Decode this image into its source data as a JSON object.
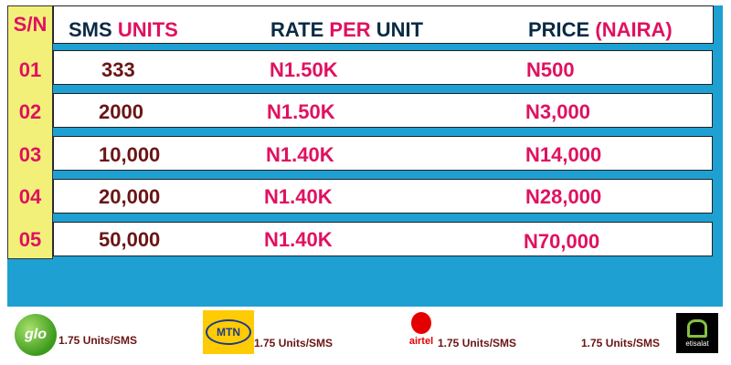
{
  "header": {
    "sn": "S/N",
    "units_a": "SMS",
    "units_b": "UNITS",
    "rate_a": "RATE",
    "rate_b": "PER",
    "rate_c": "UNIT",
    "price_a": "PRICE",
    "price_b": "(NAIRA)"
  },
  "rows": [
    {
      "sn": "01",
      "units": "333",
      "rate": "N1.50K",
      "price": "N500"
    },
    {
      "sn": "02",
      "units": "2000",
      "rate": "N1.50K",
      "price": "N3,000"
    },
    {
      "sn": "03",
      "units": "10,000",
      "rate": "N1.40K",
      "price": "N14,000"
    },
    {
      "sn": "04",
      "units": "20,000",
      "rate": "N1.40K",
      "price": "N28,000"
    },
    {
      "sn": "05",
      "units": "50,000",
      "rate": "N1.40K",
      "price": "N70,000"
    }
  ],
  "footer": {
    "glo": {
      "logo": "glo",
      "text": "1.75 Units/SMS"
    },
    "mtn": {
      "logo": "MTN",
      "text": "1.75 Units/SMS"
    },
    "airtel": {
      "logo": "airtel",
      "text": "1.75 Units/SMS"
    },
    "etisalat": {
      "logo": "etisalat",
      "text": "1.75 Units/SMS"
    }
  },
  "colors": {
    "accent": "#e0115f",
    "units": "#6b1515",
    "header": "#0b2a44",
    "panel": "#1ea0d2",
    "sn_col": "#f3f07a"
  }
}
